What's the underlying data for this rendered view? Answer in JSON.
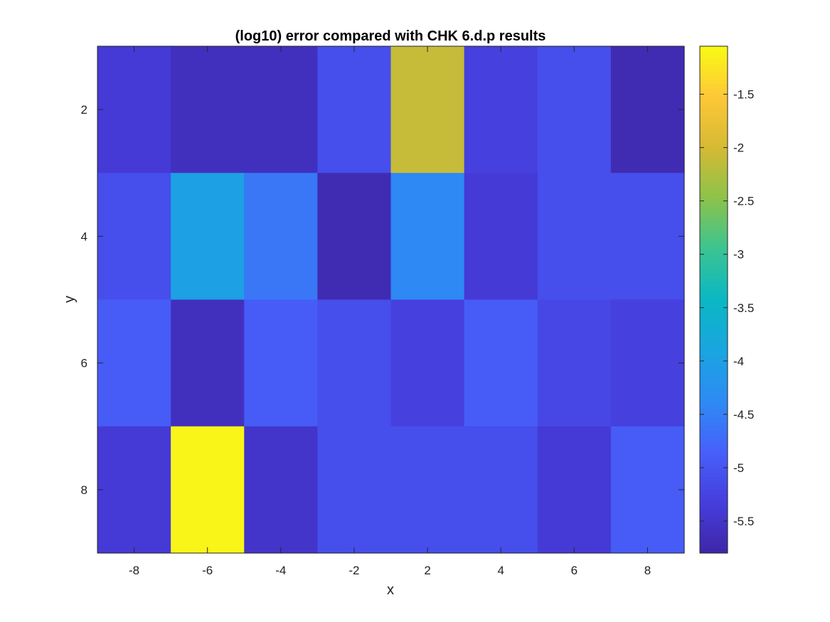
{
  "chart_data": {
    "type": "heatmap",
    "title": "(log10) error compared with CHK 6.d.p results",
    "xlabel": "x",
    "ylabel": "y",
    "x_categories": [
      -8,
      -6,
      -4,
      -2,
      2,
      4,
      6,
      8
    ],
    "y_values": [
      1.5,
      3.5,
      5.5,
      7.5
    ],
    "x_range": [
      -9,
      9
    ],
    "y_range": [
      1,
      9
    ],
    "y_reversed": true,
    "x_ticks": [
      "-8",
      "-6",
      "-4",
      "-2",
      "2",
      "4",
      "6",
      "8"
    ],
    "y_ticks": [
      "2",
      "4",
      "6",
      "8"
    ],
    "y_tick_values": [
      2,
      4,
      6,
      8
    ],
    "values": [
      [
        -5.4,
        -5.6,
        -5.6,
        -5.1,
        -2.1,
        -5.3,
        -5.1,
        -5.7
      ],
      [
        -5.1,
        -4.0,
        -4.6,
        -5.7,
        -4.4,
        -5.4,
        -5.1,
        -5.1
      ],
      [
        -4.9,
        -5.6,
        -4.9,
        -5.1,
        -5.3,
        -4.9,
        -5.2,
        -5.3
      ],
      [
        -5.4,
        -1.1,
        -5.5,
        -5.1,
        -5.1,
        -5.1,
        -5.4,
        -4.9
      ]
    ],
    "colorbar": {
      "range": [
        -5.8,
        -1.05
      ],
      "ticks": [
        "-1.5",
        "-2",
        "-2.5",
        "-3",
        "-3.5",
        "-4",
        "-4.5",
        "-5",
        "-5.5"
      ],
      "tick_values": [
        -1.5,
        -2,
        -2.5,
        -3,
        -3.5,
        -4,
        -4.5,
        -5,
        -5.5
      ],
      "colormap": "parula"
    },
    "grid": false
  }
}
